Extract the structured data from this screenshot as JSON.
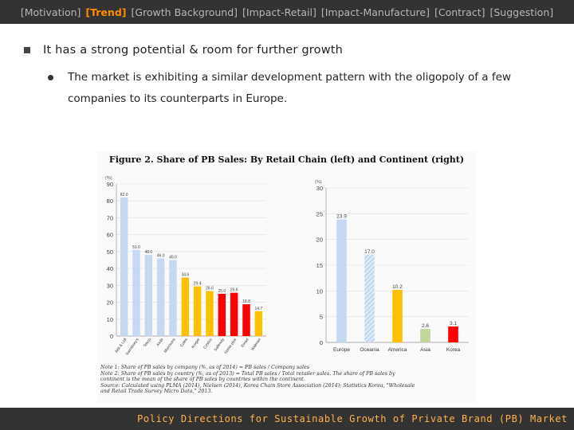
{
  "nav": {
    "items": [
      {
        "label": "[Motivation]",
        "active": false
      },
      {
        "label": "[Trend]",
        "active": true
      },
      {
        "label": "[Growth Background]",
        "active": false
      },
      {
        "label": "[Impact-Retail]",
        "active": false
      },
      {
        "label": "[Impact-Manufacture]",
        "active": false
      },
      {
        "label": "[Contract]",
        "active": false
      },
      {
        "label": "[Suggestion]",
        "active": false
      }
    ],
    "active_color": "#ff8c00"
  },
  "content": {
    "bullet1": "It has a strong potential & room for further growth",
    "bullet2_line1": "The market is exhibiting a similar development pattern with the oligopoly of a few",
    "bullet2_line2": "companies  to its counterparts in Europe."
  },
  "figure": {
    "title": "Figure  2.  Share  of  PB  Sales:  By  Retail  Chain  (left)  and  Continent  (right)",
    "notes": [
      "Note 1: Share of PB sales by company (%, as of 2014) = PB sales / Company sales",
      "Note 2: Share of PB sales by country (%, as of 2013) = Total PB sales / Total retailer sales. The share of PB sales by",
      "continent is the mean of the share of PB sales by countries within the continent.",
      "Source: Calculated using PLMA (2014), Nielsen (2014), Korea Chain Store Association (2014); Statistics Korea, \"Wholesale",
      "and Retail Trade Survey Micro Data,\" 2013."
    ]
  },
  "chart_data": [
    {
      "type": "bar",
      "title": "Share of PB Sales: By Retail Chain",
      "ylabel": "(%)",
      "ylim": [
        0,
        90
      ],
      "yticks": [
        0,
        10,
        20,
        30,
        40,
        50,
        60,
        70,
        80,
        90
      ],
      "categories": [
        "Aldi & Lidl",
        "Sainsbury's",
        "Tesco",
        "Asda",
        "Morrisons",
        "Coles",
        "Kroger",
        "Costco",
        "Safeway",
        "Home plus",
        "Emart",
        "Walmart"
      ],
      "values": [
        82.0,
        51.0,
        48.0,
        46.0,
        45.0,
        34.6,
        29.4,
        26.6,
        25.0,
        25.6,
        18.8,
        14.7
      ],
      "value_labels": [
        "82.0",
        "51.0",
        "48.0",
        "46.0",
        "45.0",
        "34.6",
        "29.4",
        "26.6",
        "25.0",
        "25.6",
        "18.8",
        "14.7"
      ],
      "colors": [
        "#c6d9f1",
        "#c6d9f1",
        "#c6d9f1",
        "#c6d9f1",
        "#c6d9f1",
        "#ffc000",
        "#ffc000",
        "#ffc000",
        "#ff0000",
        "#ff0000",
        "#ff0000",
        "#ffc000"
      ]
    },
    {
      "type": "bar",
      "title": "Share of PB Sales: By Continent",
      "ylabel": "(%)",
      "ylim": [
        0,
        30
      ],
      "yticks": [
        0,
        5,
        10,
        15,
        20,
        25,
        30
      ],
      "categories": [
        "Europe",
        "Oceania",
        "America",
        "Asia",
        "Korea"
      ],
      "values": [
        23.9,
        17.0,
        10.2,
        2.6,
        3.1
      ],
      "value_labels": [
        "23.9",
        "17.0",
        "10.2",
        "2.6",
        "3.1"
      ],
      "colors": [
        "#c6d9f1",
        "#dbe8f5",
        "#ffc000",
        "#c3d69b",
        "#ff0000"
      ],
      "hatched": [
        false,
        true,
        false,
        false,
        false
      ]
    }
  ],
  "footer": {
    "text": "Policy Directions for Sustainable Growth of Private Brand (PB) Market",
    "color": "#ffb24a"
  }
}
